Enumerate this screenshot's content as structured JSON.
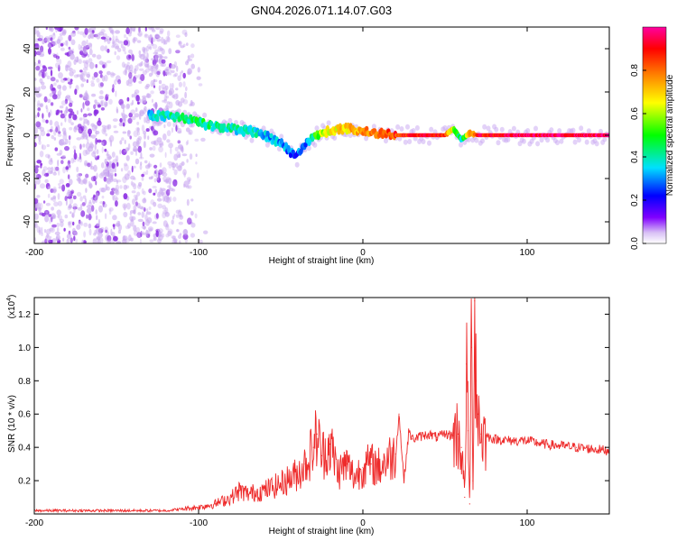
{
  "title": "GN04.2026.071.14.07.G03",
  "chart_data": [
    {
      "type": "heatmap",
      "xlabel": "Height of straight line (km)",
      "ylabel": "Frequency (Hz)",
      "xlim": [
        -200,
        150
      ],
      "ylim": [
        -50,
        50
      ],
      "x_ticks": [
        -200,
        -100,
        0,
        100
      ],
      "y_ticks": [
        -40,
        -20,
        0,
        20,
        40
      ],
      "colorbar": {
        "label": "Normalized spectral amplitude",
        "range": [
          0.0,
          1.0
        ],
        "ticks": [
          0.0,
          0.2,
          0.4,
          0.6,
          0.8
        ],
        "tick_labels": [
          "0.0",
          "0.2",
          "0.4",
          "0.6",
          "0.8"
        ],
        "colormap": [
          "#ffffff",
          "#d8c0f5",
          "#8000ff",
          "#0000ff",
          "#00e0ff",
          "#00ff00",
          "#ffff00",
          "#ff8000",
          "#ff0000",
          "#ff00a0"
        ]
      },
      "ridge": {
        "x": [
          -130,
          -120,
          -110,
          -100,
          -90,
          -80,
          -70,
          -60,
          -50,
          -45,
          -40,
          -35,
          -30,
          -25,
          -20,
          -10,
          0,
          10,
          20,
          30,
          40,
          50,
          55,
          60,
          65,
          70,
          80,
          90,
          100,
          120,
          150
        ],
        "freq": [
          9,
          9,
          8,
          6,
          4,
          3,
          2,
          0,
          -4,
          -7,
          -10,
          -4,
          -1,
          1,
          2,
          3,
          2,
          1,
          0,
          0,
          0,
          0,
          3,
          -2,
          1,
          0,
          0,
          0,
          0,
          0,
          0
        ],
        "amplitude": [
          0.35,
          0.4,
          0.4,
          0.45,
          0.42,
          0.4,
          0.38,
          0.35,
          0.3,
          0.3,
          0.25,
          0.3,
          0.45,
          0.6,
          0.65,
          0.7,
          0.75,
          0.8,
          0.85,
          0.9,
          0.9,
          0.85,
          0.6,
          0.4,
          0.7,
          0.9,
          0.9,
          0.95,
          0.95,
          0.95,
          0.95
        ]
      },
      "noise_region_x": [
        -200,
        -95
      ]
    },
    {
      "type": "line",
      "xlabel": "Height of straight line (km)",
      "ylabel": "SNR (10 * v/v)",
      "y_multiplier": "(x10",
      "y_multiplier_exp": "4",
      "xlim": [
        -200,
        150
      ],
      "ylim": [
        0,
        1.3
      ],
      "x_ticks": [
        -200,
        -100,
        0,
        100
      ],
      "y_ticks": [
        0.2,
        0.4,
        0.6,
        0.8,
        1.0,
        1.2
      ],
      "series_color": "#ee2a2a",
      "x": [
        -200,
        -180,
        -160,
        -140,
        -120,
        -110,
        -100,
        -90,
        -80,
        -75,
        -70,
        -60,
        -50,
        -40,
        -35,
        -30,
        -28,
        -25,
        -20,
        -15,
        -10,
        -5,
        0,
        5,
        10,
        15,
        20,
        22,
        25,
        28,
        30,
        40,
        45,
        50,
        55,
        58,
        60,
        62,
        63,
        64,
        65,
        66,
        67,
        68,
        69,
        70,
        72,
        75,
        80,
        90,
        100,
        110,
        120,
        130,
        140,
        150
      ],
      "values": [
        0.02,
        0.02,
        0.02,
        0.02,
        0.02,
        0.03,
        0.04,
        0.06,
        0.1,
        0.14,
        0.12,
        0.14,
        0.18,
        0.24,
        0.3,
        0.4,
        0.48,
        0.35,
        0.42,
        0.25,
        0.3,
        0.22,
        0.28,
        0.3,
        0.28,
        0.33,
        0.36,
        0.6,
        0.2,
        0.5,
        0.45,
        0.48,
        0.46,
        0.48,
        0.47,
        0.48,
        0.4,
        0.1,
        0.9,
        0.5,
        0.06,
        1.0,
        0.2,
        1.28,
        0.8,
        0.6,
        0.48,
        0.47,
        0.45,
        0.44,
        0.44,
        0.42,
        0.41,
        0.4,
        0.39,
        0.38
      ]
    }
  ]
}
